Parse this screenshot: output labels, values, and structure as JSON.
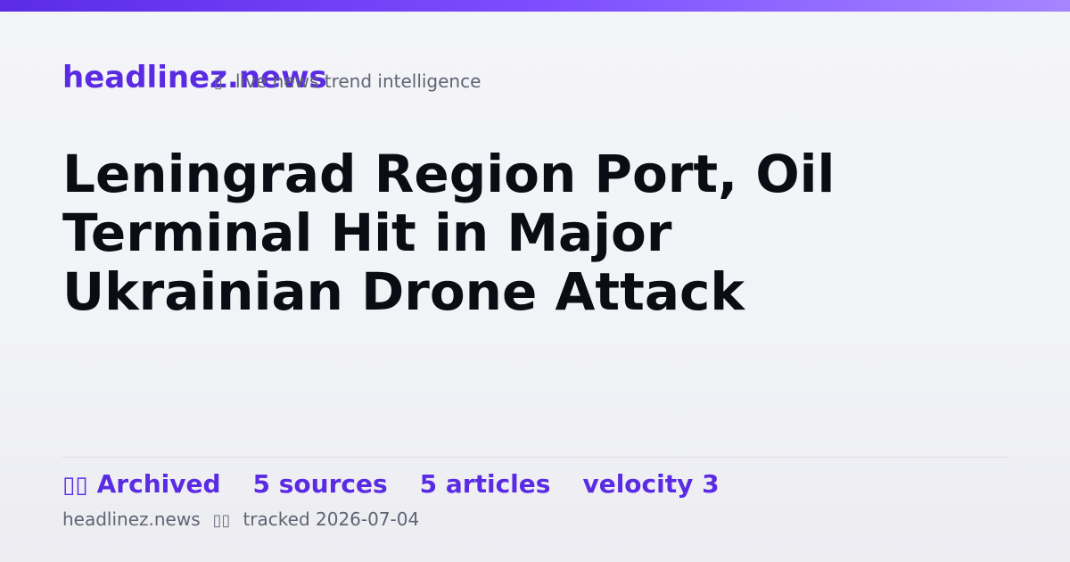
{
  "brand": {
    "name": "headlinez.news",
    "tagline": "live news trend intelligence",
    "tagline_icon": "chart-icon"
  },
  "article": {
    "headline": "Leningrad Region Port, Oil Terminal Hit in Major Ukrainian Drone Attack"
  },
  "stats": {
    "status_icon": "archive-icon",
    "status": "Archived",
    "sources": "5 sources",
    "articles": "5 articles",
    "velocity": "velocity 3"
  },
  "meta": {
    "site": "headlinez.news",
    "separator_icon": "clock-icon",
    "tracked": "tracked 2026-07-04"
  },
  "colors": {
    "accent": "#5a2be3",
    "headline": "#0c0d14",
    "muted": "#5f6474",
    "bar_start": "#5b2be6",
    "bar_end": "#a585ff"
  }
}
